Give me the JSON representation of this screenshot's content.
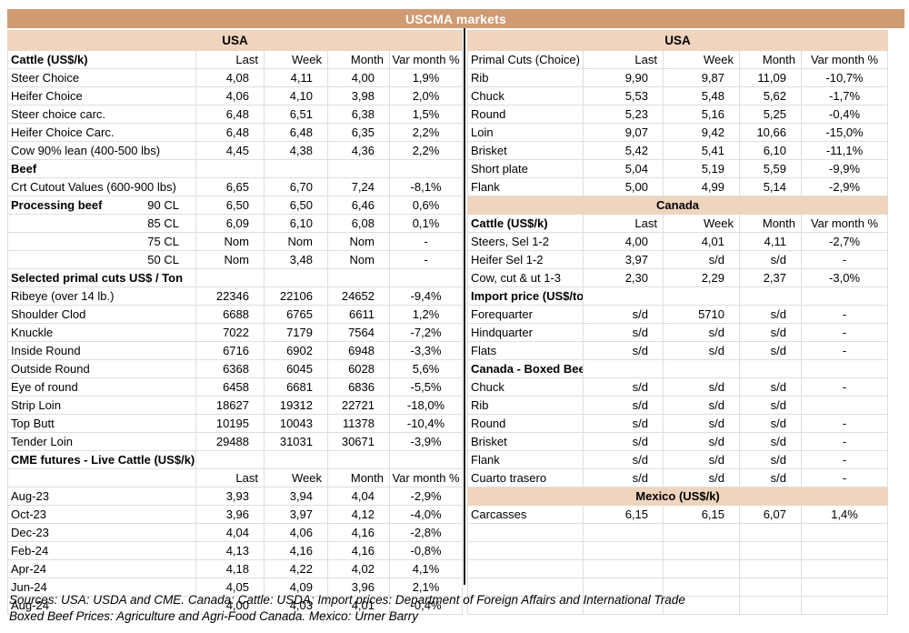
{
  "title": "USCMA markets",
  "columns": [
    "Last",
    "Week",
    "Month",
    "Var month %"
  ],
  "colors": {
    "title_bar_bg": "#D09B73",
    "band_bg": "#EFD4BE",
    "grid": "#DEDEDE",
    "title_text": "#FFFFFF"
  },
  "left": {
    "rows": [
      {
        "t": "band",
        "label": "USA"
      },
      {
        "t": "hdr",
        "b": true,
        "label": "Cattle (US$/k)"
      },
      {
        "t": "row",
        "label": "Steer Choice",
        "values": [
          "4,08",
          "4,11",
          "4,00",
          "1,9%"
        ]
      },
      {
        "t": "row",
        "label": "Heifer Choice",
        "values": [
          "4,06",
          "4,10",
          "3,98",
          "2,0%"
        ]
      },
      {
        "t": "row",
        "label": "Steer choice carc.",
        "values": [
          "6,48",
          "6,51",
          "6,38",
          "1,5%"
        ]
      },
      {
        "t": "row",
        "label": "Heifer Choice Carc.",
        "values": [
          "6,48",
          "6,48",
          "6,35",
          "2,2%"
        ]
      },
      {
        "t": "row",
        "label": "Cow 90% lean (400-500 lbs)",
        "values": [
          "4,45",
          "4,38",
          "4,36",
          "2,2%"
        ]
      },
      {
        "t": "sec",
        "label": "Beef"
      },
      {
        "t": "row",
        "label": "Crt Cutout Values (600-900 lbs)",
        "values": [
          "6,65",
          "6,70",
          "7,24",
          "-8,1%"
        ]
      },
      {
        "t": "row",
        "label": "Processing beef",
        "l2": "90 CL",
        "values": [
          "6,50",
          "6,50",
          "6,46",
          "0,6%"
        ]
      },
      {
        "t": "row",
        "l2": "85 CL",
        "values": [
          "6,09",
          "6,10",
          "6,08",
          "0,1%"
        ]
      },
      {
        "t": "row",
        "l2": "75 CL",
        "values": [
          "Nom",
          "Nom",
          "Nom",
          "-"
        ]
      },
      {
        "t": "row",
        "l2": "50 CL",
        "values": [
          "Nom",
          "3,48",
          "Nom",
          "-"
        ]
      },
      {
        "t": "sec",
        "label": "Selected primal cuts US$ / Ton"
      },
      {
        "t": "row",
        "label": "Ribeye (over 14 lb.)",
        "values": [
          "22346",
          "22106",
          "24652",
          "-9,4%"
        ]
      },
      {
        "t": "row",
        "label": "Shoulder Clod",
        "values": [
          "6688",
          "6765",
          "6611",
          "1,2%"
        ]
      },
      {
        "t": "row",
        "label": "Knuckle",
        "values": [
          "7022",
          "7179",
          "7564",
          "-7,2%"
        ]
      },
      {
        "t": "row",
        "label": "Inside Round",
        "values": [
          "6716",
          "6902",
          "6948",
          "-3,3%"
        ]
      },
      {
        "t": "row",
        "label": "Outside Round",
        "values": [
          "6368",
          "6045",
          "6028",
          "5,6%"
        ]
      },
      {
        "t": "row",
        "label": "Eye of round",
        "values": [
          "6458",
          "6681",
          "6836",
          "-5,5%"
        ]
      },
      {
        "t": "row",
        "label": "Strip Loin",
        "values": [
          "18627",
          "19312",
          "22721",
          "-18,0%"
        ]
      },
      {
        "t": "row",
        "label": "Top Butt",
        "values": [
          "10195",
          "10043",
          "11378",
          "-10,4%"
        ]
      },
      {
        "t": "row",
        "label": "Tender Loin",
        "values": [
          "29488",
          "31031",
          "30671",
          "-3,9%"
        ]
      },
      {
        "t": "sec",
        "label": "CME futures - Live Cattle (US$/k)"
      },
      {
        "t": "hdr",
        "label": ""
      },
      {
        "t": "row",
        "label": "Aug-23",
        "values": [
          "3,93",
          "3,94",
          "4,04",
          "-2,9%"
        ]
      },
      {
        "t": "row",
        "label": "Oct-23",
        "values": [
          "3,96",
          "3,97",
          "4,12",
          "-4,0%"
        ]
      },
      {
        "t": "row",
        "label": "Dec-23",
        "values": [
          "4,04",
          "4,06",
          "4,16",
          "-2,8%"
        ]
      },
      {
        "t": "row",
        "label": "Feb-24",
        "values": [
          "4,13",
          "4,16",
          "4,16",
          "-0,8%"
        ]
      },
      {
        "t": "row",
        "label": "Apr-24",
        "values": [
          "4,18",
          "4,22",
          "4,02",
          "4,1%"
        ]
      },
      {
        "t": "row",
        "label": "Jun-24",
        "values": [
          "4,05",
          "4,09",
          "3,96",
          "2,1%"
        ]
      },
      {
        "t": "row",
        "label": "Aug-24",
        "values": [
          "4,00",
          "4,03",
          "4,01",
          "-0,4%"
        ]
      }
    ]
  },
  "right": {
    "rows": [
      {
        "t": "band",
        "label": "USA"
      },
      {
        "t": "hdr",
        "label": "Primal Cuts (Choice)"
      },
      {
        "t": "row",
        "label": "Rib",
        "values": [
          "9,90",
          "9,87",
          "11,09",
          "-10,7%"
        ]
      },
      {
        "t": "row",
        "label": "Chuck",
        "values": [
          "5,53",
          "5,48",
          "5,62",
          "-1,7%"
        ]
      },
      {
        "t": "row",
        "label": "Round",
        "values": [
          "5,23",
          "5,16",
          "5,25",
          "-0,4%"
        ]
      },
      {
        "t": "row",
        "label": "Loin",
        "values": [
          "9,07",
          "9,42",
          "10,66",
          "-15,0%"
        ]
      },
      {
        "t": "row",
        "label": "Brisket",
        "values": [
          "5,42",
          "5,41",
          "6,10",
          "-11,1%"
        ]
      },
      {
        "t": "row",
        "label": "Short plate",
        "values": [
          "5,04",
          "5,19",
          "5,59",
          "-9,9%"
        ]
      },
      {
        "t": "row",
        "label": "Flank",
        "values": [
          "5,00",
          "4,99",
          "5,14",
          "-2,9%"
        ]
      },
      {
        "t": "band",
        "label": "Canada"
      },
      {
        "t": "hdr",
        "b": true,
        "label": "Cattle (US$/k)"
      },
      {
        "t": "row",
        "label": "Steers, Sel 1-2",
        "values": [
          "4,00",
          "4,01",
          "4,11",
          "-2,7%"
        ]
      },
      {
        "t": "row",
        "label": "Heifer Sel 1-2",
        "values": [
          "3,97",
          "s/d",
          "s/d",
          "-"
        ]
      },
      {
        "t": "row",
        "label": "Cow, cut & ut 1-3",
        "values": [
          "2,30",
          "2,29",
          "2,37",
          "-3,0%"
        ]
      },
      {
        "t": "sec",
        "label": "Import price (US$/ton, frozen, boneless )"
      },
      {
        "t": "row",
        "label": "Forequarter",
        "values": [
          "s/d",
          "5710",
          "s/d",
          "-"
        ]
      },
      {
        "t": "row",
        "label": "Hindquarter",
        "values": [
          "s/d",
          "s/d",
          "s/d",
          "-"
        ]
      },
      {
        "t": "row",
        "label": "Flats",
        "values": [
          "s/d",
          "s/d",
          "s/d",
          "-"
        ]
      },
      {
        "t": "sec",
        "label": "Canada - Boxed Beef Prices (US$/k)"
      },
      {
        "t": "row",
        "label": "Chuck",
        "values": [
          "s/d",
          "s/d",
          "s/d",
          "-"
        ]
      },
      {
        "t": "row",
        "label": "Rib",
        "values": [
          "s/d",
          "s/d",
          "s/d",
          ""
        ]
      },
      {
        "t": "row",
        "label": "Round",
        "values": [
          "s/d",
          "s/d",
          "s/d",
          "-"
        ]
      },
      {
        "t": "row",
        "label": "Brisket",
        "values": [
          "s/d",
          "s/d",
          "s/d",
          "-"
        ]
      },
      {
        "t": "row",
        "label": "Flank",
        "values": [
          "s/d",
          "s/d",
          "s/d",
          "-"
        ]
      },
      {
        "t": "row",
        "label": "Cuarto trasero",
        "values": [
          "s/d",
          "s/d",
          "s/d",
          "-"
        ]
      },
      {
        "t": "band",
        "label": "Mexico (US$/k)"
      },
      {
        "t": "row",
        "label": "Carcasses",
        "values": [
          "6,15",
          "6,15",
          "6,07",
          "1,4%"
        ]
      },
      {
        "t": "empty"
      },
      {
        "t": "empty"
      },
      {
        "t": "empty"
      },
      {
        "t": "empty"
      },
      {
        "t": "empty"
      }
    ]
  },
  "footer": {
    "line1": "Sources: USA: USDA and CME. Canada: Cattle: USDA; Import prices: Department of Foreign Affairs and International Trade",
    "line2": "Boxed Beef Prices: Agriculture and Agri-Food Canada. Mexico: Urner Barry"
  }
}
